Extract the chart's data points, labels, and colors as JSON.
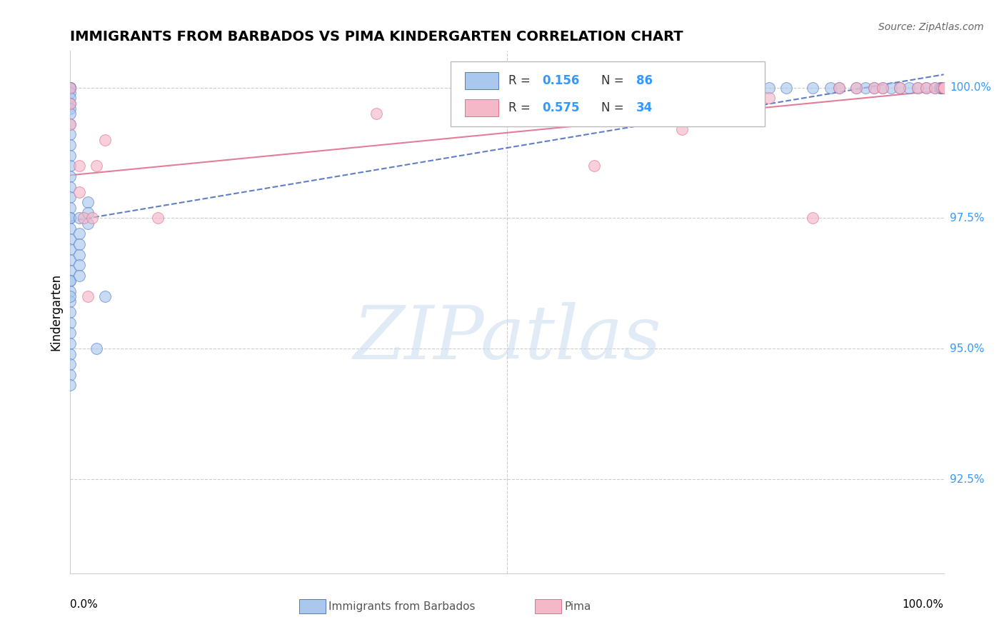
{
  "title": "IMMIGRANTS FROM BARBADOS VS PIMA KINDERGARTEN CORRELATION CHART",
  "source": "Source: ZipAtlas.com",
  "ylabel": "Kindergarten",
  "ytick_labels": [
    "92.5%",
    "95.0%",
    "97.5%",
    "100.0%"
  ],
  "ytick_values": [
    0.925,
    0.95,
    0.975,
    1.0
  ],
  "xlim": [
    0.0,
    1.0
  ],
  "ylim": [
    0.907,
    1.007
  ],
  "r1": "0.156",
  "n1": "86",
  "r2": "0.575",
  "n2": "34",
  "blue_face": "#aac8ee",
  "blue_edge": "#5577cc",
  "pink_face": "#f4b8c8",
  "pink_edge": "#e07090",
  "blue_trend": "#4466bb",
  "pink_trend": "#dd6688",
  "grid_color": "#cccccc",
  "watermark_color": "#c8dcf0",
  "label1": "Immigrants from Barbados",
  "label2": "Pima",
  "blue_x": [
    0.0,
    0.0,
    0.0,
    0.0,
    0.0,
    0.0,
    0.0,
    0.0,
    0.0,
    0.0,
    0.0,
    0.0,
    0.0,
    0.0,
    0.0,
    0.0,
    0.0,
    0.0,
    0.0,
    0.0,
    0.0,
    0.0,
    0.0,
    0.0,
    0.0,
    0.0,
    0.0,
    0.0,
    0.0,
    0.0,
    0.0,
    0.0,
    0.0,
    0.0,
    0.0,
    0.0,
    0.0,
    0.0,
    0.0,
    0.01,
    0.01,
    0.01,
    0.01,
    0.01,
    0.01,
    0.02,
    0.02,
    0.02,
    0.03,
    0.04,
    0.55,
    0.6,
    0.62,
    0.65,
    0.7,
    0.72,
    0.75,
    0.78,
    0.8,
    0.82,
    0.85,
    0.87,
    0.88,
    0.9,
    0.91,
    0.92,
    0.93,
    0.94,
    0.95,
    0.96,
    0.97,
    0.98,
    0.99,
    0.995,
    0.997,
    0.998,
    0.999,
    1.0,
    1.0,
    1.0,
    1.0,
    1.0,
    1.0,
    1.0,
    1.0,
    1.0
  ],
  "blue_y": [
    1.0,
    1.0,
    1.0,
    1.0,
    1.0,
    0.999,
    0.998,
    0.997,
    0.996,
    0.995,
    0.993,
    0.991,
    0.989,
    0.987,
    0.985,
    0.983,
    0.981,
    0.979,
    0.977,
    0.975,
    0.975,
    0.973,
    0.971,
    0.969,
    0.967,
    0.965,
    0.963,
    0.963,
    0.961,
    0.959,
    0.957,
    0.955,
    0.953,
    0.951,
    0.949,
    0.947,
    0.945,
    0.943,
    0.96,
    0.975,
    0.972,
    0.97,
    0.968,
    0.966,
    0.964,
    0.978,
    0.976,
    0.974,
    0.95,
    0.96,
    1.0,
    1.0,
    1.0,
    1.0,
    1.0,
    1.0,
    1.0,
    1.0,
    1.0,
    1.0,
    1.0,
    1.0,
    1.0,
    1.0,
    1.0,
    1.0,
    1.0,
    1.0,
    1.0,
    1.0,
    1.0,
    1.0,
    1.0,
    1.0,
    1.0,
    1.0,
    1.0,
    1.0,
    1.0,
    1.0,
    1.0,
    1.0,
    1.0,
    1.0,
    1.0,
    1.0
  ],
  "pink_x": [
    0.0,
    0.0,
    0.0,
    0.01,
    0.01,
    0.015,
    0.02,
    0.025,
    0.03,
    0.04,
    0.1,
    0.35,
    0.55,
    0.6,
    0.65,
    0.7,
    0.75,
    0.8,
    0.85,
    0.88,
    0.9,
    0.92,
    0.93,
    0.95,
    0.97,
    0.98,
    0.99,
    1.0,
    1.0,
    1.0,
    1.0,
    1.0,
    1.0,
    1.0
  ],
  "pink_y": [
    1.0,
    0.997,
    0.993,
    0.985,
    0.98,
    0.975,
    0.96,
    0.975,
    0.985,
    0.99,
    0.975,
    0.995,
    0.999,
    0.985,
    0.996,
    0.992,
    1.0,
    0.998,
    0.975,
    1.0,
    1.0,
    1.0,
    1.0,
    1.0,
    1.0,
    1.0,
    1.0,
    1.0,
    1.0,
    1.0,
    1.0,
    1.0,
    1.0,
    1.0
  ]
}
